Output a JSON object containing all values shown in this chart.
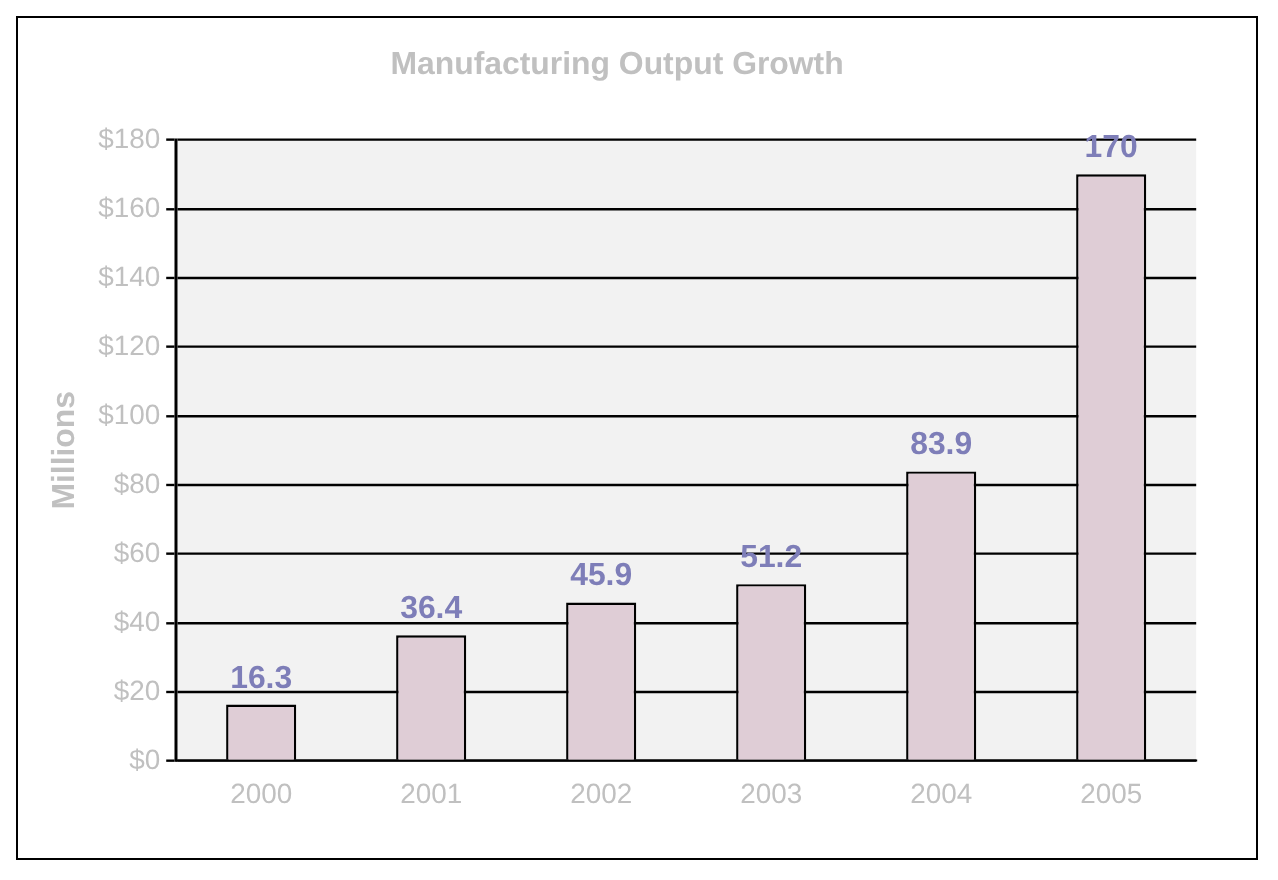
{
  "chart_data": {
    "type": "bar",
    "title": "Manufacturing Output Growth",
    "ylabel": "Millions",
    "categories": [
      "2000",
      "2001",
      "2002",
      "2003",
      "2004",
      "2005"
    ],
    "values": [
      16.3,
      36.4,
      45.9,
      51.2,
      83.9,
      170
    ],
    "color": "#dfcdd6",
    "ylim": [
      0,
      180
    ],
    "yticks": [
      {
        "value": 0,
        "label": "$0"
      },
      {
        "value": 20,
        "label": "$20"
      },
      {
        "value": 40,
        "label": "$40"
      },
      {
        "value": 60,
        "label": "$60"
      },
      {
        "value": 80,
        "label": "$80"
      },
      {
        "value": 100,
        "label": "$100"
      },
      {
        "value": 120,
        "label": "$120"
      },
      {
        "value": 140,
        "label": "$140"
      },
      {
        "value": 160,
        "label": "$160"
      },
      {
        "value": 180,
        "label": "$180"
      }
    ],
    "grid": "y",
    "data_labels": true,
    "legend": false
  }
}
